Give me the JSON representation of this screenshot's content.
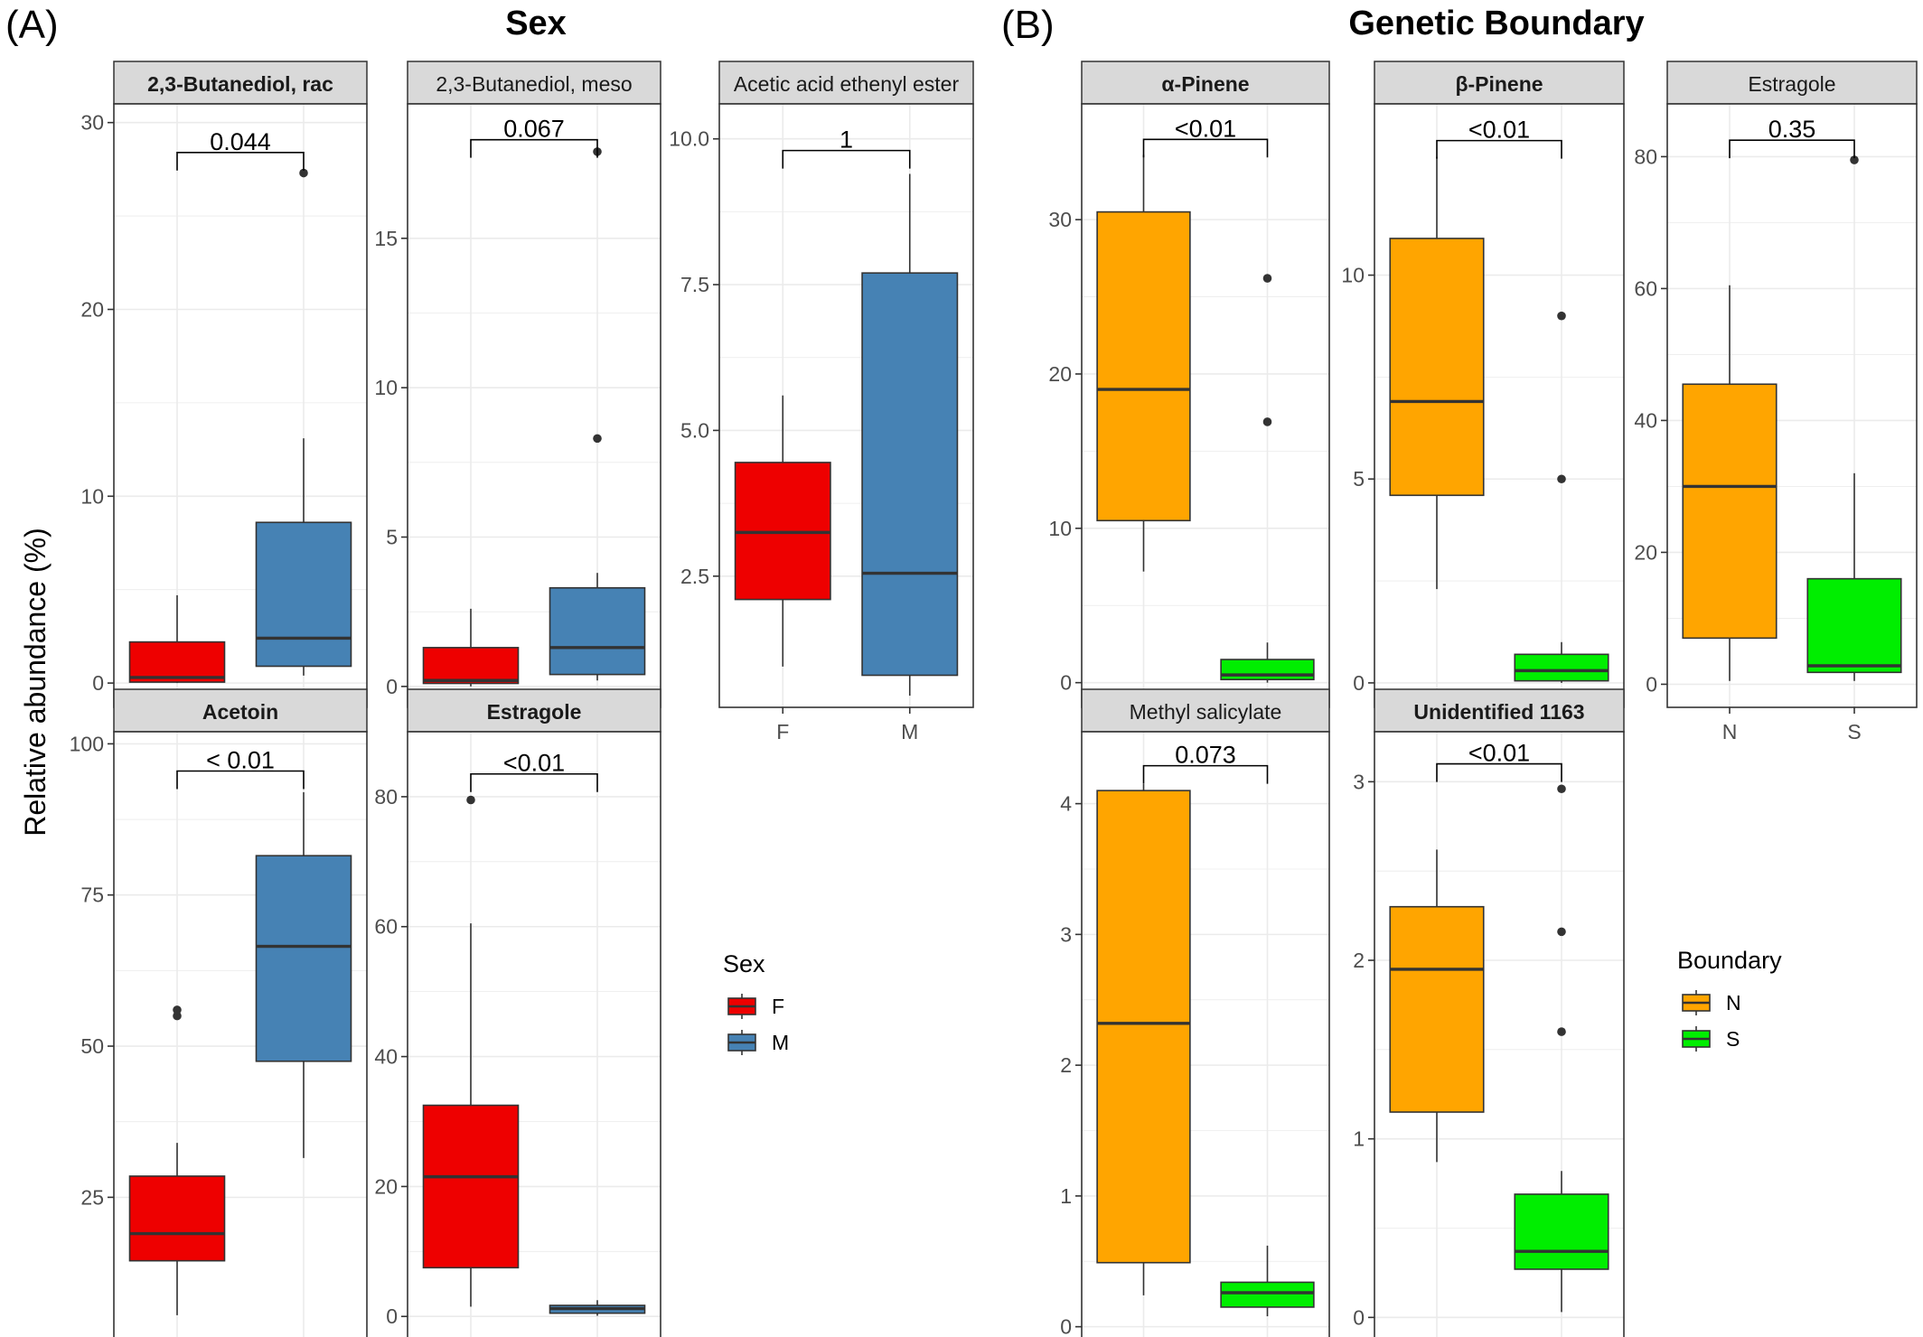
{
  "panel_labels": [
    "(A)",
    "(B)"
  ],
  "group_titles": [
    "Sex",
    "Genetic Boundary"
  ],
  "ylabel": "Relative abundance (%)",
  "colors": {
    "F": "#EE0000",
    "M": "#4682B4",
    "N": "#FFA500",
    "S": "#00EE00",
    "strip": "#D9D9D9",
    "grid": "#EBEBEB",
    "line": "#333333"
  },
  "legends": [
    {
      "title": "Sex",
      "items": [
        {
          "key": "F",
          "color": "#EE0000"
        },
        {
          "key": "M",
          "color": "#4682B4"
        }
      ]
    },
    {
      "title": "Boundary",
      "items": [
        {
          "key": "N",
          "color": "#FFA500"
        },
        {
          "key": "S",
          "color": "#00EE00"
        }
      ]
    }
  ],
  "chart_data": [
    {
      "type": "box",
      "title": "2,3-Butanediol, rac",
      "bold_title": true,
      "categories": [
        "F",
        "M"
      ],
      "ylim": [
        -1.3,
        31
      ],
      "ticks": [
        0,
        10,
        20,
        30
      ],
      "tick_labels": [
        "0",
        "10",
        "20",
        "30"
      ],
      "p_value": "0.044",
      "bracket_y": 28.4,
      "boxes": [
        {
          "group": "F",
          "q1": 0.05,
          "median": 0.3,
          "q3": 2.2,
          "whisker_low": 0,
          "whisker_high": 4.7,
          "outliers": []
        },
        {
          "group": "M",
          "q1": 0.9,
          "median": 2.4,
          "q3": 8.6,
          "whisker_low": 0.4,
          "whisker_high": 13.1,
          "outliers": [
            27.3
          ]
        }
      ]
    },
    {
      "type": "box",
      "title": "2,3-Butanediol, meso",
      "bold_title": false,
      "categories": [
        "F",
        "M"
      ],
      "ylim": [
        -0.7,
        19.5
      ],
      "ticks": [
        0,
        5,
        10,
        15
      ],
      "tick_labels": [
        "0",
        "5",
        "10",
        "15"
      ],
      "p_value": "0.067",
      "bracket_y": 18.3,
      "boxes": [
        {
          "group": "F",
          "q1": 0.1,
          "median": 0.2,
          "q3": 1.3,
          "whisker_low": 0,
          "whisker_high": 2.6,
          "outliers": []
        },
        {
          "group": "M",
          "q1": 0.4,
          "median": 1.3,
          "q3": 3.3,
          "whisker_low": 0.2,
          "whisker_high": 3.8,
          "outliers": [
            8.3,
            17.9
          ]
        }
      ]
    },
    {
      "type": "box",
      "title": "Acetic acid ethenyl ester",
      "bold_title": false,
      "categories": [
        "F",
        "M"
      ],
      "ylim": [
        0.25,
        10.6
      ],
      "ticks": [
        2.5,
        5,
        7.5,
        10
      ],
      "tick_labels": [
        "2.5",
        "5.0",
        "7.5",
        "10.0"
      ],
      "p_value": "1",
      "bracket_y": 9.8,
      "boxes": [
        {
          "group": "F",
          "q1": 2.1,
          "median": 3.25,
          "q3": 4.45,
          "whisker_low": 0.95,
          "whisker_high": 5.6,
          "outliers": []
        },
        {
          "group": "M",
          "q1": 0.8,
          "median": 2.55,
          "q3": 7.7,
          "whisker_low": 0.45,
          "whisker_high": 9.4,
          "outliers": []
        }
      ]
    },
    {
      "type": "box",
      "title": "Acetoin",
      "bold_title": true,
      "categories": [
        "F",
        "M"
      ],
      "ylim": [
        1,
        102
      ],
      "ticks": [
        25,
        50,
        75,
        100
      ],
      "tick_labels": [
        "25",
        "50",
        "75",
        "100"
      ],
      "p_value": "< 0.01",
      "bracket_y": 95.5,
      "boxes": [
        {
          "group": "F",
          "q1": 14.5,
          "median": 19,
          "q3": 28.5,
          "whisker_low": 5.5,
          "whisker_high": 34,
          "outliers": [
            55,
            56
          ]
        },
        {
          "group": "M",
          "q1": 47.5,
          "median": 66.5,
          "q3": 81.5,
          "whisker_low": 31.5,
          "whisker_high": 92,
          "outliers": []
        }
      ]
    },
    {
      "type": "box",
      "title": "Estragole",
      "bold_title": true,
      "categories": [
        "F",
        "M"
      ],
      "ylim": [
        -4,
        90
      ],
      "ticks": [
        0,
        20,
        40,
        60,
        80
      ],
      "tick_labels": [
        "0",
        "20",
        "40",
        "60",
        "80"
      ],
      "p_value": "<0.01",
      "bracket_y": 83.5,
      "boxes": [
        {
          "group": "F",
          "q1": 7.5,
          "median": 21.5,
          "q3": 32.5,
          "whisker_low": 1.5,
          "whisker_high": 60.5,
          "outliers": [
            79.5
          ]
        },
        {
          "group": "M",
          "q1": 0.5,
          "median": 1.2,
          "q3": 1.7,
          "whisker_low": 0.1,
          "whisker_high": 2.5,
          "outliers": []
        }
      ]
    },
    {
      "type": "box",
      "title": "α-Pinene",
      "bold_title": true,
      "categories": [
        "N",
        "S"
      ],
      "ylim": [
        -1.6,
        37.5
      ],
      "ticks": [
        0,
        10,
        20,
        30
      ],
      "tick_labels": [
        "0",
        "10",
        "20",
        "30"
      ],
      "p_value": "<0.01",
      "bracket_y": 35.2,
      "boxes": [
        {
          "group": "N",
          "q1": 10.5,
          "median": 19,
          "q3": 30.5,
          "whisker_low": 7.2,
          "whisker_high": 34.2,
          "outliers": []
        },
        {
          "group": "S",
          "q1": 0.2,
          "median": 0.5,
          "q3": 1.5,
          "whisker_low": 0,
          "whisker_high": 2.6,
          "outliers": [
            16.9,
            26.2
          ]
        }
      ]
    },
    {
      "type": "box",
      "title": "β-Pinene",
      "bold_title": true,
      "categories": [
        "N",
        "S"
      ],
      "ylim": [
        -0.6,
        14.2
      ],
      "ticks": [
        0,
        5,
        10
      ],
      "tick_labels": [
        "0",
        "5",
        "10"
      ],
      "p_value": "<0.01",
      "bracket_y": 13.3,
      "boxes": [
        {
          "group": "N",
          "q1": 4.6,
          "median": 6.9,
          "q3": 10.9,
          "whisker_low": 2.3,
          "whisker_high": 12.9,
          "outliers": []
        },
        {
          "group": "S",
          "q1": 0.05,
          "median": 0.3,
          "q3": 0.7,
          "whisker_low": 0,
          "whisker_high": 1,
          "outliers": [
            5,
            9
          ]
        }
      ]
    },
    {
      "type": "box",
      "title": "Estragole",
      "bold_title": false,
      "categories": [
        "N",
        "S"
      ],
      "ylim": [
        -3.5,
        88
      ],
      "ticks": [
        0,
        20,
        40,
        60,
        80
      ],
      "tick_labels": [
        "0",
        "20",
        "40",
        "60",
        "80"
      ],
      "p_value": "0.35",
      "bracket_y": 82.5,
      "boxes": [
        {
          "group": "N",
          "q1": 7,
          "median": 30,
          "q3": 45.5,
          "whisker_low": 0.5,
          "whisker_high": 60.5,
          "outliers": []
        },
        {
          "group": "S",
          "q1": 1.8,
          "median": 2.8,
          "q3": 16,
          "whisker_low": 0.5,
          "whisker_high": 32,
          "outliers": [
            79.5
          ]
        }
      ]
    },
    {
      "type": "box",
      "title": "Methyl salicylate",
      "bold_title": false,
      "categories": [
        "N",
        "S"
      ],
      "ylim": [
        -0.12,
        4.55
      ],
      "ticks": [
        0,
        1,
        2,
        3,
        4
      ],
      "tick_labels": [
        "0",
        "1",
        "2",
        "3",
        "4"
      ],
      "p_value": "0.073",
      "bracket_y": 4.29,
      "boxes": [
        {
          "group": "N",
          "q1": 0.49,
          "median": 2.32,
          "q3": 4.1,
          "whisker_low": 0.24,
          "whisker_high": 4.15,
          "outliers": []
        },
        {
          "group": "S",
          "q1": 0.15,
          "median": 0.26,
          "q3": 0.34,
          "whisker_low": 0.08,
          "whisker_high": 0.62,
          "outliers": []
        }
      ]
    },
    {
      "type": "box",
      "title": "Unidentified 1163",
      "bold_title": true,
      "categories": [
        "N",
        "S"
      ],
      "ylim": [
        -0.14,
        3.28
      ],
      "ticks": [
        0,
        1,
        2,
        3
      ],
      "tick_labels": [
        "0",
        "1",
        "2",
        "3"
      ],
      "p_value": "<0.01",
      "bracket_y": 3.1,
      "boxes": [
        {
          "group": "N",
          "q1": 1.15,
          "median": 1.95,
          "q3": 2.3,
          "whisker_low": 0.87,
          "whisker_high": 2.62,
          "outliers": []
        },
        {
          "group": "S",
          "q1": 0.27,
          "median": 0.37,
          "q3": 0.69,
          "whisker_low": 0.03,
          "whisker_high": 0.82,
          "outliers": [
            1.6,
            2.16,
            2.96
          ]
        }
      ]
    }
  ]
}
